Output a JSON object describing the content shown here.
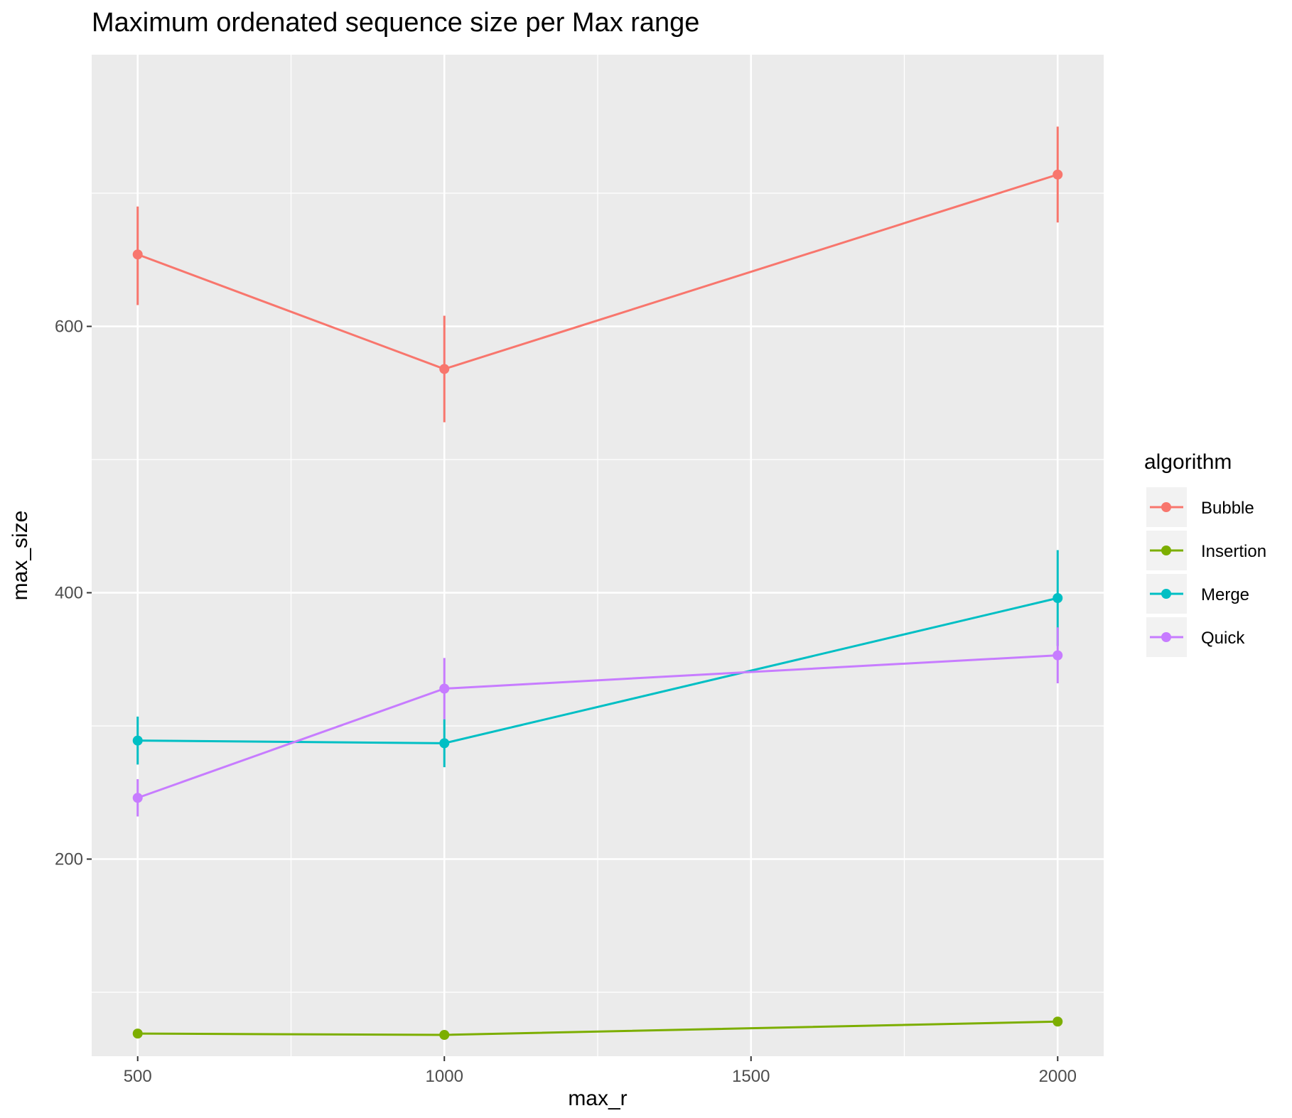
{
  "chart_data": {
    "type": "line",
    "title": "Maximum ordenated sequence size per Max range",
    "xlabel": "max_r",
    "ylabel": "max_size",
    "x": [
      500,
      1000,
      2000
    ],
    "xlim": [
      425,
      2075
    ],
    "ylim": [
      52,
      804
    ],
    "x_ticks": [
      500,
      1000,
      1500,
      2000
    ],
    "x_tick_labels": [
      "500",
      "1000",
      "1500",
      "2000"
    ],
    "y_ticks": [
      200,
      400,
      600
    ],
    "y_tick_labels": [
      "200",
      "400",
      "600"
    ],
    "x_minor_ticks": [
      750,
      1250,
      1750
    ],
    "y_minor_ticks": [
      100,
      300,
      500,
      700
    ],
    "grid": true,
    "error_bars": true,
    "legend": {
      "title": "algorithm",
      "position": "right"
    },
    "series": [
      {
        "name": "Bubble",
        "color": "#F8766D",
        "values": [
          654,
          568,
          714
        ],
        "lower": [
          616,
          528,
          678
        ],
        "upper": [
          690,
          608,
          750
        ]
      },
      {
        "name": "Insertion",
        "color": "#7CAE00",
        "values": [
          69,
          68,
          78
        ],
        "lower": [
          69,
          68,
          78
        ],
        "upper": [
          69,
          68,
          78
        ]
      },
      {
        "name": "Merge",
        "color": "#00BFC4",
        "values": [
          289,
          287,
          396
        ],
        "lower": [
          271,
          269,
          360
        ],
        "upper": [
          307,
          305,
          432
        ]
      },
      {
        "name": "Quick",
        "color": "#C77CFF",
        "values": [
          246,
          328,
          353
        ],
        "lower": [
          232,
          305,
          332
        ],
        "upper": [
          260,
          351,
          374
        ]
      }
    ]
  }
}
